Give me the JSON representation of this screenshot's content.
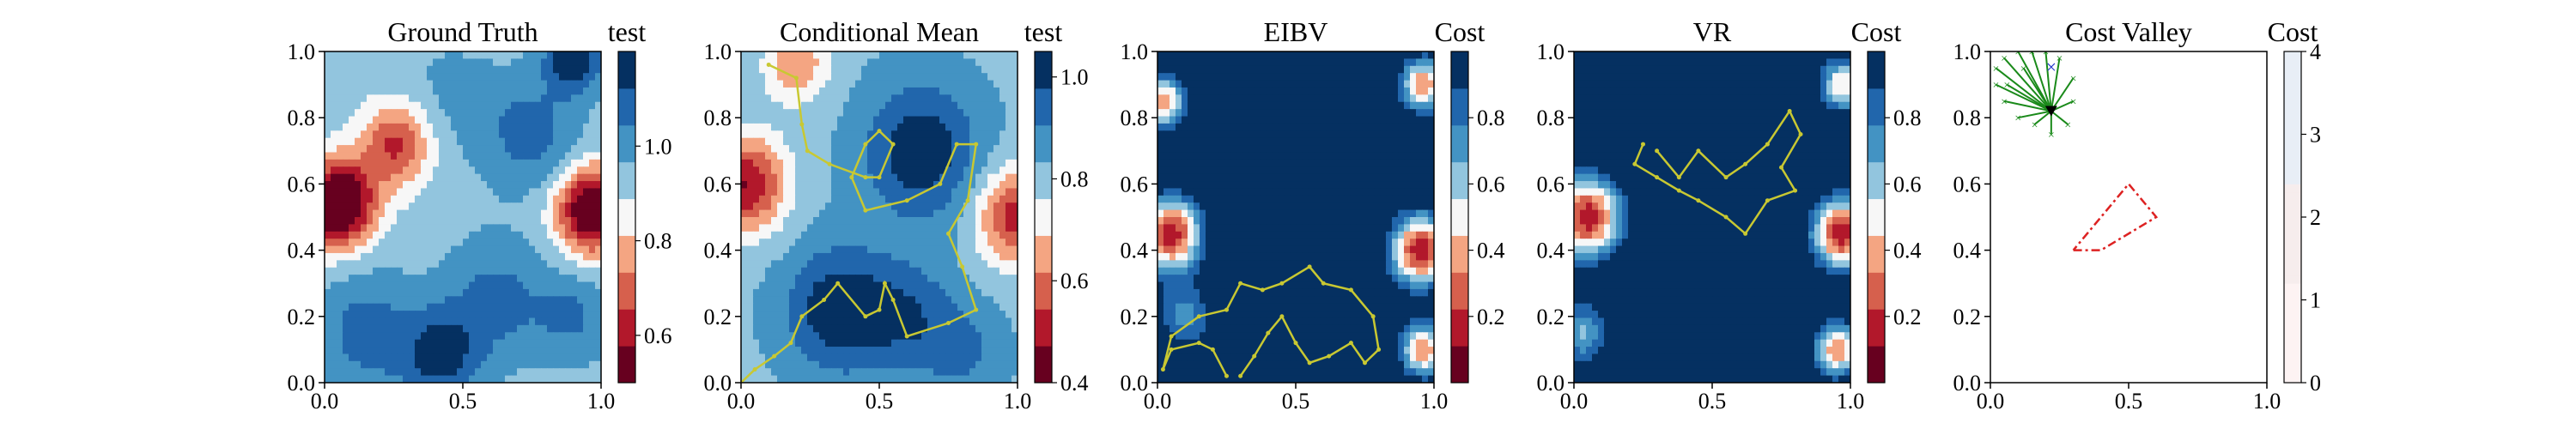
{
  "chart_data": [
    {
      "type": "heatmap",
      "title": "Ground Truth",
      "colorbar_label": "test",
      "colormap": "RdBu",
      "xlim": [
        0,
        1
      ],
      "ylim": [
        0,
        1
      ],
      "x_ticks": [
        "0.0",
        "0.5",
        "1.0"
      ],
      "y_ticks": [
        "0.0",
        "0.2",
        "0.4",
        "0.6",
        "0.8",
        "1.0"
      ],
      "colorbar_range": [
        0.5,
        1.2
      ],
      "colorbar_ticks": [
        "0.6",
        "0.8",
        "1.0"
      ],
      "colorbar_tick_values": [
        0.6,
        0.8,
        1.0
      ],
      "field_blobs": [
        {
          "x": 0.05,
          "y": 0.54,
          "amp": -0.55,
          "s": 0.09
        },
        {
          "x": 0.97,
          "y": 0.52,
          "amp": -0.5,
          "s": 0.09
        },
        {
          "x": 0.26,
          "y": 0.72,
          "amp": -0.3,
          "s": 0.09
        },
        {
          "x": 0.9,
          "y": 0.98,
          "amp": 0.28,
          "s": 0.07
        },
        {
          "x": 0.75,
          "y": 0.75,
          "amp": 0.15,
          "s": 0.12
        },
        {
          "x": 0.42,
          "y": 0.08,
          "amp": 0.22,
          "s": 0.1
        },
        {
          "x": 0.15,
          "y": 0.15,
          "amp": 0.15,
          "s": 0.13
        },
        {
          "x": 0.62,
          "y": 0.25,
          "amp": 0.14,
          "s": 0.13
        },
        {
          "x": 0.9,
          "y": 0.2,
          "amp": 0.12,
          "s": 0.1
        },
        {
          "x": 0.45,
          "y": 0.85,
          "amp": 0.06,
          "s": 0.14
        }
      ],
      "field_base": 0.93
    },
    {
      "type": "heatmap",
      "title": "Conditional Mean",
      "colorbar_label": "test",
      "colormap": "RdBu",
      "xlim": [
        0,
        1
      ],
      "ylim": [
        0,
        1
      ],
      "x_ticks": [
        "0.0",
        "0.5",
        "1.0"
      ],
      "y_ticks": [
        "0.0",
        "0.2",
        "0.4",
        "0.6",
        "0.8",
        "1.0"
      ],
      "colorbar_range": [
        0.4,
        1.05
      ],
      "colorbar_ticks": [
        "0.4",
        "0.6",
        "0.8",
        "1.0"
      ],
      "colorbar_tick_values": [
        0.4,
        0.6,
        0.8,
        1.0
      ],
      "field_blobs": [
        {
          "x": 0.02,
          "y": 0.6,
          "amp": -0.35,
          "s": 0.1
        },
        {
          "x": 1.0,
          "y": 0.5,
          "amp": -0.32,
          "s": 0.1
        },
        {
          "x": 0.2,
          "y": 0.96,
          "amp": -0.2,
          "s": 0.08
        },
        {
          "x": 0.65,
          "y": 0.7,
          "amp": 0.22,
          "s": 0.14
        },
        {
          "x": 0.35,
          "y": 0.22,
          "amp": 0.22,
          "s": 0.13
        },
        {
          "x": 0.6,
          "y": 0.2,
          "amp": 0.14,
          "s": 0.12
        },
        {
          "x": 0.8,
          "y": 0.1,
          "amp": 0.1,
          "s": 0.1
        }
      ],
      "field_base": 0.82,
      "path": [
        [
          0.1,
          0.96
        ],
        [
          0.2,
          0.92
        ],
        [
          0.22,
          0.78
        ],
        [
          0.24,
          0.7
        ],
        [
          0.32,
          0.66
        ],
        [
          0.45,
          0.62
        ],
        [
          0.5,
          0.62
        ],
        [
          0.55,
          0.72
        ],
        [
          0.5,
          0.76
        ],
        [
          0.45,
          0.72
        ],
        [
          0.4,
          0.62
        ],
        [
          0.45,
          0.52
        ],
        [
          0.6,
          0.55
        ],
        [
          0.72,
          0.6
        ],
        [
          0.78,
          0.72
        ],
        [
          0.85,
          0.72
        ],
        [
          0.82,
          0.55
        ],
        [
          0.75,
          0.45
        ],
        [
          0.8,
          0.35
        ],
        [
          0.85,
          0.22
        ],
        [
          0.75,
          0.18
        ],
        [
          0.6,
          0.14
        ],
        [
          0.55,
          0.25
        ],
        [
          0.52,
          0.3
        ],
        [
          0.5,
          0.22
        ],
        [
          0.45,
          0.2
        ],
        [
          0.35,
          0.3
        ],
        [
          0.3,
          0.25
        ],
        [
          0.22,
          0.2
        ],
        [
          0.18,
          0.12
        ],
        [
          0.12,
          0.08
        ],
        [
          0.05,
          0.04
        ],
        [
          0.0,
          0.0
        ]
      ]
    },
    {
      "type": "heatmap",
      "title": "EIBV",
      "colorbar_label": "Cost",
      "colormap": "RdBu",
      "xlim": [
        0,
        1
      ],
      "ylim": [
        0,
        1
      ],
      "x_ticks": [
        "0.0",
        "0.5",
        "1.0"
      ],
      "y_ticks": [
        "0.0",
        "0.2",
        "0.4",
        "0.6",
        "0.8",
        "1.0"
      ],
      "colorbar_range": [
        0.0,
        1.0
      ],
      "colorbar_ticks": [
        "0.2",
        "0.4",
        "0.6",
        "0.8"
      ],
      "colorbar_tick_values": [
        0.2,
        0.4,
        0.6,
        0.8
      ],
      "field_blobs": [
        {
          "x": 0.05,
          "y": 0.45,
          "amp": -1.0,
          "s": 0.08
        },
        {
          "x": 0.95,
          "y": 0.4,
          "amp": -1.0,
          "s": 0.08
        },
        {
          "x": 0.02,
          "y": 0.85,
          "amp": -0.8,
          "s": 0.06
        },
        {
          "x": 0.96,
          "y": 0.9,
          "amp": -0.8,
          "s": 0.06
        },
        {
          "x": 0.96,
          "y": 0.1,
          "amp": -0.8,
          "s": 0.06
        },
        {
          "x": 0.1,
          "y": 0.2,
          "amp": -0.4,
          "s": 0.08
        }
      ],
      "field_base": 1.15,
      "path": [
        [
          0.25,
          0.02
        ],
        [
          0.2,
          0.1
        ],
        [
          0.15,
          0.12
        ],
        [
          0.05,
          0.1
        ],
        [
          0.02,
          0.04
        ],
        [
          0.05,
          0.14
        ],
        [
          0.15,
          0.2
        ],
        [
          0.25,
          0.22
        ],
        [
          0.3,
          0.3
        ],
        [
          0.38,
          0.28
        ],
        [
          0.45,
          0.3
        ],
        [
          0.55,
          0.35
        ],
        [
          0.6,
          0.3
        ],
        [
          0.7,
          0.28
        ],
        [
          0.78,
          0.2
        ],
        [
          0.8,
          0.1
        ],
        [
          0.75,
          0.06
        ],
        [
          0.7,
          0.12
        ],
        [
          0.62,
          0.08
        ],
        [
          0.55,
          0.06
        ],
        [
          0.5,
          0.12
        ],
        [
          0.45,
          0.2
        ],
        [
          0.4,
          0.15
        ],
        [
          0.35,
          0.08
        ],
        [
          0.3,
          0.02
        ]
      ]
    },
    {
      "type": "heatmap",
      "title": "VR",
      "colorbar_label": "Cost",
      "colormap": "RdBu",
      "xlim": [
        0,
        1
      ],
      "ylim": [
        0,
        1
      ],
      "x_ticks": [
        "0.0",
        "0.5",
        "1.0"
      ],
      "y_ticks": [
        "0.0",
        "0.2",
        "0.4",
        "0.6",
        "0.8",
        "1.0"
      ],
      "colorbar_range": [
        0.0,
        1.0
      ],
      "colorbar_ticks": [
        "0.2",
        "0.4",
        "0.6",
        "0.8"
      ],
      "colorbar_tick_values": [
        0.2,
        0.4,
        0.6,
        0.8
      ],
      "field_blobs": [
        {
          "x": 0.05,
          "y": 0.5,
          "amp": -1.0,
          "s": 0.09
        },
        {
          "x": 0.97,
          "y": 0.45,
          "amp": -1.0,
          "s": 0.08
        },
        {
          "x": 0.97,
          "y": 0.9,
          "amp": -0.7,
          "s": 0.06
        },
        {
          "x": 0.95,
          "y": 0.1,
          "amp": -0.8,
          "s": 0.06
        },
        {
          "x": 0.03,
          "y": 0.15,
          "amp": -0.5,
          "s": 0.07
        }
      ],
      "field_base": 1.15,
      "path": [
        [
          0.3,
          0.7
        ],
        [
          0.38,
          0.62
        ],
        [
          0.45,
          0.7
        ],
        [
          0.55,
          0.62
        ],
        [
          0.62,
          0.66
        ],
        [
          0.7,
          0.72
        ],
        [
          0.78,
          0.82
        ],
        [
          0.82,
          0.75
        ],
        [
          0.75,
          0.65
        ],
        [
          0.8,
          0.58
        ],
        [
          0.7,
          0.55
        ],
        [
          0.62,
          0.45
        ],
        [
          0.55,
          0.5
        ],
        [
          0.45,
          0.55
        ],
        [
          0.38,
          0.58
        ],
        [
          0.3,
          0.62
        ],
        [
          0.22,
          0.66
        ],
        [
          0.25,
          0.72
        ]
      ]
    },
    {
      "type": "scatter",
      "title": "Cost Valley",
      "colorbar_label": "Cost",
      "colormap": "Reds",
      "xlim": [
        0,
        1
      ],
      "ylim": [
        0,
        1
      ],
      "x_ticks": [
        "0.0",
        "0.5",
        "1.0"
      ],
      "y_ticks": [
        "0.0",
        "0.2",
        "0.4",
        "0.6",
        "0.8",
        "1.0"
      ],
      "colorbar_range": [
        0,
        4
      ],
      "colorbar_ticks": [
        "0",
        "1",
        "2",
        "3",
        "4"
      ],
      "colorbar_tick_values": [
        0,
        1,
        2,
        3,
        4
      ],
      "polygon": [
        [
          0.3,
          0.4
        ],
        [
          0.4,
          0.4
        ],
        [
          0.6,
          0.5
        ],
        [
          0.5,
          0.6
        ],
        [
          0.3,
          0.4
        ]
      ],
      "current_location": [
        0.22,
        0.82
      ],
      "target_location": [
        0.22,
        0.95
      ],
      "candidate_origin": [
        0.22,
        0.82
      ],
      "candidate_endpoints": [
        [
          0.02,
          0.95
        ],
        [
          0.05,
          0.98
        ],
        [
          0.1,
          1.0
        ],
        [
          0.15,
          1.0
        ],
        [
          0.2,
          1.0
        ],
        [
          0.25,
          0.98
        ],
        [
          0.3,
          0.92
        ],
        [
          0.3,
          0.85
        ],
        [
          0.28,
          0.78
        ],
        [
          0.22,
          0.75
        ],
        [
          0.16,
          0.78
        ],
        [
          0.1,
          0.8
        ],
        [
          0.05,
          0.85
        ],
        [
          0.02,
          0.9
        ],
        [
          0.06,
          0.9
        ],
        [
          0.12,
          0.95
        ]
      ],
      "colors": {
        "path": "#c8c832",
        "candidate": "#1a8a1a",
        "polygon": "#dd2222",
        "target": "#2233cc"
      }
    }
  ]
}
